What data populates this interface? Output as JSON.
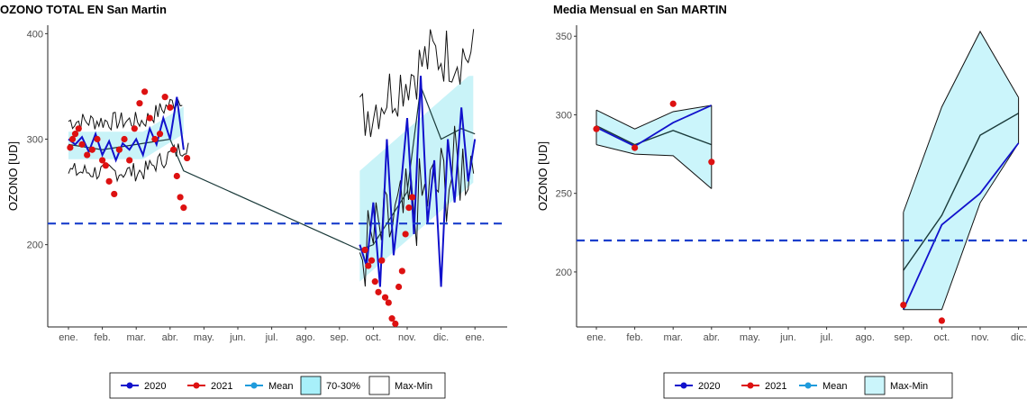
{
  "chart_data": [
    {
      "type": "line",
      "title": "OZONO TOTAL EN San Martin",
      "ylabel": "OZONO [UD]",
      "xlabel": "",
      "x_ticks": [
        "ene.",
        "feb.",
        "mar.",
        "abr.",
        "may.",
        "jun.",
        "jul.",
        "ago.",
        "sep.",
        "oct.",
        "nov.",
        "dic.",
        "ene."
      ],
      "y_ticks": [
        200,
        300,
        400
      ],
      "ylim": [
        122,
        408
      ],
      "reference_line": 220,
      "legend": [
        "2020",
        "2021",
        "Mean",
        "70-30%",
        "Max-Min"
      ],
      "series": [
        {
          "name": "2020",
          "color": "#1111cc",
          "x": [
            0,
            0.2,
            0.4,
            0.6,
            0.8,
            1.0,
            1.2,
            1.4,
            1.6,
            1.8,
            2.0,
            2.2,
            2.4,
            2.6,
            2.8,
            3.0,
            3.2,
            3.4,
            8.6,
            8.8,
            9.0,
            9.2,
            9.4,
            9.6,
            9.8,
            10.0,
            10.2,
            10.4,
            10.6,
            10.8,
            11.0,
            11.2,
            11.4,
            11.6,
            11.8,
            12.0
          ],
          "values": [
            300,
            295,
            302,
            288,
            305,
            285,
            298,
            280,
            296,
            290,
            300,
            285,
            310,
            295,
            320,
            300,
            340,
            290,
            200,
            180,
            240,
            160,
            300,
            190,
            250,
            320,
            210,
            360,
            220,
            280,
            160,
            300,
            240,
            330,
            260,
            300
          ]
        },
        {
          "name": "2021",
          "color": "#dd1111",
          "x": [
            0.05,
            0.12,
            0.2,
            0.3,
            0.4,
            0.55,
            0.7,
            0.85,
            1.0,
            1.1,
            1.2,
            1.35,
            1.5,
            1.65,
            1.8,
            1.95,
            2.1,
            2.25,
            2.4,
            2.55,
            2.7,
            2.85,
            3.0,
            3.1,
            3.2,
            3.3,
            3.4,
            3.5,
            8.75,
            8.85,
            8.95,
            9.05,
            9.15,
            9.25,
            9.35,
            9.45,
            9.55,
            9.65,
            9.75,
            9.85,
            9.95,
            10.05,
            10.15
          ],
          "values": [
            292,
            300,
            305,
            310,
            295,
            285,
            290,
            300,
            280,
            275,
            260,
            248,
            290,
            300,
            280,
            310,
            334,
            345,
            320,
            300,
            305,
            340,
            330,
            290,
            265,
            245,
            235,
            282,
            195,
            180,
            185,
            165,
            155,
            185,
            150,
            145,
            130,
            125,
            160,
            175,
            210,
            235,
            245
          ]
        },
        {
          "name": "Mean",
          "color": "#1f9bdc",
          "x": [
            0,
            1,
            2,
            3,
            3.4,
            8.6,
            9,
            10,
            10.4,
            11,
            11.6,
            12
          ],
          "values": [
            295,
            290,
            295,
            300,
            270,
            195,
            200,
            250,
            350,
            300,
            310,
            305
          ]
        }
      ]
    },
    {
      "type": "line",
      "title": "Media Mensual en San MARTIN",
      "ylabel": "OZONO [UD]",
      "xlabel": "",
      "x_ticks": [
        "ene.",
        "feb.",
        "mar.",
        "abr.",
        "may.",
        "jun.",
        "jul.",
        "ago.",
        "sep.",
        "oct.",
        "nov.",
        "dic."
      ],
      "y_ticks": [
        200,
        250,
        300,
        350
      ],
      "ylim": [
        165,
        357
      ],
      "reference_line": 220,
      "legend": [
        "2020",
        "2021",
        "Mean",
        "Max-Min"
      ],
      "series": [
        {
          "name": "2020",
          "color": "#1111cc",
          "x": [
            0,
            1,
            2,
            3,
            8,
            9,
            10,
            11
          ],
          "values": [
            292,
            280,
            295,
            306,
            176,
            230,
            250,
            282
          ]
        },
        {
          "name": "2021",
          "color": "#dd1111",
          "x": [
            0,
            1,
            2,
            3,
            8,
            9
          ],
          "values": [
            291,
            279,
            307,
            270,
            179,
            169
          ]
        },
        {
          "name": "Mean",
          "color": "#1a3a3a",
          "x": [
            0,
            1,
            2,
            3,
            8,
            9,
            10,
            11
          ],
          "values": [
            293,
            281,
            290,
            281,
            201,
            236,
            287,
            301
          ]
        },
        {
          "name": "Max-Min upper",
          "color": "#111111",
          "x": [
            0,
            1,
            2,
            3,
            8,
            9,
            10,
            11
          ],
          "values": [
            303,
            291,
            302,
            306,
            238,
            305,
            353,
            311
          ]
        },
        {
          "name": "Max-Min lower",
          "color": "#111111",
          "x": [
            0,
            1,
            2,
            3,
            8,
            9,
            10,
            11
          ],
          "values": [
            281,
            275,
            274,
            253,
            176,
            176,
            244,
            282
          ]
        }
      ]
    }
  ]
}
